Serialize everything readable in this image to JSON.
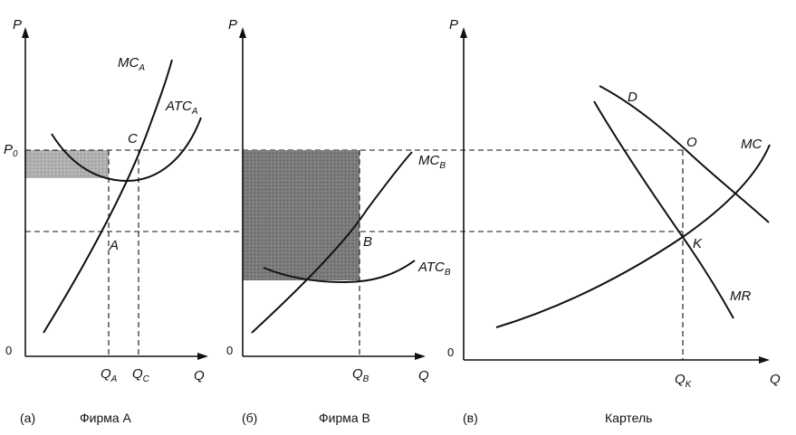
{
  "axis_labels": {
    "price": "P",
    "quantity": "Q",
    "origin": "0"
  },
  "panel_a": {
    "caption_letter": "(а)",
    "caption_title": "Фирма A",
    "price_level": "P",
    "price_level_sub": "0",
    "curves": {
      "mc": "MC",
      "mc_sub": "A",
      "atc": "ATC",
      "atc_sub": "A"
    },
    "points": {
      "a": "A",
      "c": "C"
    },
    "ticks": {
      "qa": "Q",
      "qa_sub": "A",
      "qc": "Q",
      "qc_sub": "C"
    }
  },
  "panel_b": {
    "caption_letter": "(б)",
    "caption_title": "Фирма B",
    "curves": {
      "mc": "MC",
      "mc_sub": "B",
      "atc": "ATC",
      "atc_sub": "B"
    },
    "points": {
      "b": "B"
    },
    "ticks": {
      "qb": "Q",
      "qb_sub": "B"
    }
  },
  "panel_c": {
    "caption_letter": "(в)",
    "caption_title": "Картель",
    "curves": {
      "d": "D",
      "mc": "MC",
      "mr": "MR"
    },
    "points": {
      "o": "O",
      "k": "K"
    },
    "ticks": {
      "qk": "Q",
      "qk_sub": "K"
    }
  },
  "colors": {
    "shade_light": "#a9a9a9",
    "shade_dark": "#6e6e6e",
    "ink": "#111111"
  }
}
